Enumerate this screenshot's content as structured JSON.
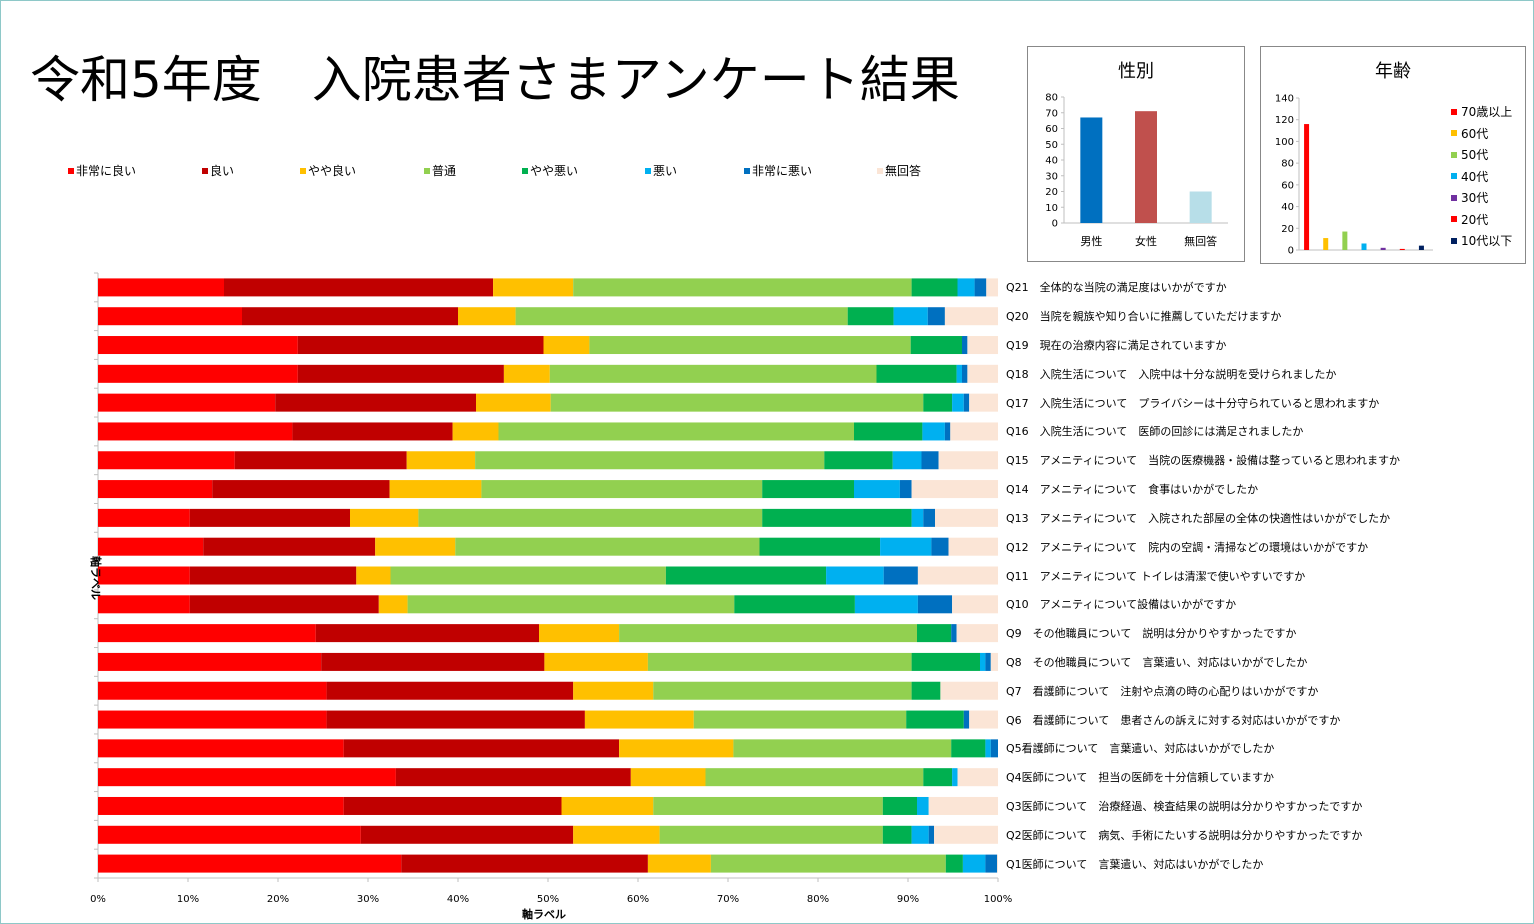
{
  "title": "令和5年度　入院患者さまアンケート結果",
  "colors": {
    "非常に良い": "#ff0000",
    "良い": "#c00000",
    "やや良い": "#ffc000",
    "普通": "#92d050",
    "やや悪い": "#00b050",
    "悪い": "#00b0f0",
    "非常に悪い": "#0070c0",
    "無回答": "#fbe5d6"
  },
  "legend": [
    "非常に良い",
    "良い",
    "やや良い",
    "普通",
    "やや悪い",
    "悪い",
    "非常に悪い",
    "無回答"
  ],
  "gender_chart": {
    "title": "性別",
    "categories": [
      "男性",
      "女性",
      "無回答"
    ],
    "values": [
      67,
      71,
      20
    ],
    "colors": [
      "#0070c0",
      "#c0504d",
      "#b7dee8"
    ],
    "ylim": [
      0,
      80
    ],
    "yticks": [
      "80",
      "70",
      "60",
      "50",
      "40",
      "30",
      "20",
      "10",
      "0"
    ]
  },
  "age_chart": {
    "title": "年齢",
    "series": [
      {
        "name": "70歳以上",
        "value": 116,
        "color": "#ff0000"
      },
      {
        "name": "60代",
        "value": 11,
        "color": "#ffc000"
      },
      {
        "name": "50代",
        "value": 17,
        "color": "#92d050"
      },
      {
        "name": "40代",
        "value": 6,
        "color": "#00b0f0"
      },
      {
        "name": "30代",
        "value": 2,
        "color": "#7030a0"
      },
      {
        "name": "20代",
        "value": 1,
        "color": "#ff0000"
      },
      {
        "name": "10代以下",
        "value": 4,
        "color": "#002060"
      }
    ],
    "ylim": [
      0,
      140
    ],
    "yticks": [
      "140",
      "120",
      "100",
      "80",
      "60",
      "40",
      "20",
      "0"
    ]
  },
  "chart_data": {
    "type": "bar",
    "stacked": true,
    "orientation": "horizontal",
    "xlabel": "軸ラベル",
    "ylabel": "軸ラベル",
    "xlim": [
      0,
      100
    ],
    "xticks": [
      "0%",
      "10%",
      "20%",
      "30%",
      "40%",
      "50%",
      "60%",
      "70%",
      "80%",
      "90%",
      "100%"
    ],
    "categories": [
      "Q21　全体的な当院の満足度はいかがですか",
      "Q20　当院を親族や知り合いに推薦していただけますか",
      "Q19　現在の治療内容に満足されていますか",
      "Q18　入院生活について　入院中は十分な説明を受けられましたか",
      "Q17　入院生活について　プライバシーは十分守られていると思われますか",
      "Q16　入院生活について　医師の回診には満足されましたか",
      "Q15　アメニティについて　当院の医療機器・設備は整っていると思われますか",
      "Q14　アメニティについて　食事はいかがでしたか",
      "Q13　アメニティについて　入院された部屋の全体の快適性はいかがでしたか",
      "Q12　アメニティについて　院内の空調・清掃などの環境はいかがですか",
      "Q11　アメニティについて トイレは清潔で使いやすいですか",
      "Q10　アメニティについて設備はいかがですか",
      "Q9　その他職員について　説明は分かりやすかったですか",
      "Q8　その他職員について　言葉遣い、対応はいかがでしたか",
      "Q7　看護師について　注射や点滴の時の心配りはいかがですか",
      "Q6　看護師について　患者さんの訴えに対する対応はいかがですか",
      "Q5看護師について　言葉遣い、対応はいかがでしたか",
      "Q4医師について　担当の医師を十分信頼していますか",
      "Q3医師について　治療経過、検査結果の説明は分かりやすかったですか",
      "Q2医師について　病気、手術にたいする説明は分かりやすかったですか",
      "Q1医師について　言葉遣い、対応はいかがでしたか"
    ],
    "series": [
      {
        "name": "非常に良い",
        "values": [
          14,
          16,
          22.2,
          22.2,
          19.7,
          21.6,
          15.2,
          12.7,
          10.2,
          11.7,
          10.2,
          10.2,
          24.2,
          24.8,
          25.4,
          25.4,
          27.3,
          33.1,
          27.3,
          29.2,
          33.7
        ]
      },
      {
        "name": "良い",
        "values": [
          29.9,
          24,
          27.3,
          22.9,
          22.3,
          17.8,
          19.1,
          19.7,
          17.8,
          19.1,
          18.5,
          21,
          24.8,
          24.8,
          27.4,
          28.7,
          30.6,
          26.1,
          24.2,
          23.6,
          27.4
        ]
      },
      {
        "name": "やや良い",
        "values": [
          8.9,
          6.4,
          5.1,
          5.1,
          8.3,
          5.1,
          7.6,
          10.2,
          7.6,
          8.9,
          3.8,
          3.2,
          8.9,
          11.5,
          8.9,
          12.1,
          12.7,
          8.3,
          10.2,
          9.6,
          7
        ]
      },
      {
        "name": "普通",
        "values": [
          37.6,
          36.9,
          35.7,
          36.3,
          41.4,
          39.5,
          38.8,
          31.2,
          38.2,
          33.8,
          30.6,
          36.3,
          33.1,
          29.3,
          28.7,
          23.6,
          24.2,
          24.2,
          25.5,
          24.8,
          26.1
        ]
      },
      {
        "name": "やや悪い",
        "values": [
          5.1,
          5.1,
          5.7,
          8.9,
          3.2,
          7.6,
          7.6,
          10.2,
          16.6,
          13.4,
          17.8,
          13.4,
          3.8,
          7.6,
          3.2,
          6.4,
          3.8,
          3.2,
          3.8,
          3.2,
          1.9
        ]
      },
      {
        "name": "悪い",
        "values": [
          1.9,
          3.8,
          0,
          0.6,
          1.3,
          2.5,
          3.2,
          5.1,
          1.3,
          5.7,
          6.4,
          7,
          0,
          0.6,
          0,
          0,
          0.6,
          0.6,
          1.3,
          1.9,
          2.5
        ]
      },
      {
        "name": "非常に悪い",
        "values": [
          1.3,
          1.9,
          0.6,
          0.6,
          0.6,
          0.6,
          1.9,
          1.3,
          1.3,
          1.9,
          3.8,
          3.8,
          0.6,
          0.6,
          0,
          0.6,
          1.3,
          0,
          0,
          0.6,
          1.3
        ]
      },
      {
        "name": "無回答",
        "values": [
          1.3,
          5.9,
          3.4,
          3.4,
          3.2,
          5.3,
          6.6,
          9.6,
          7,
          5.5,
          8.9,
          5.1,
          4.6,
          0.8,
          6.4,
          3.2,
          0,
          4.5,
          7.7,
          7.1,
          0.1
        ]
      }
    ]
  }
}
